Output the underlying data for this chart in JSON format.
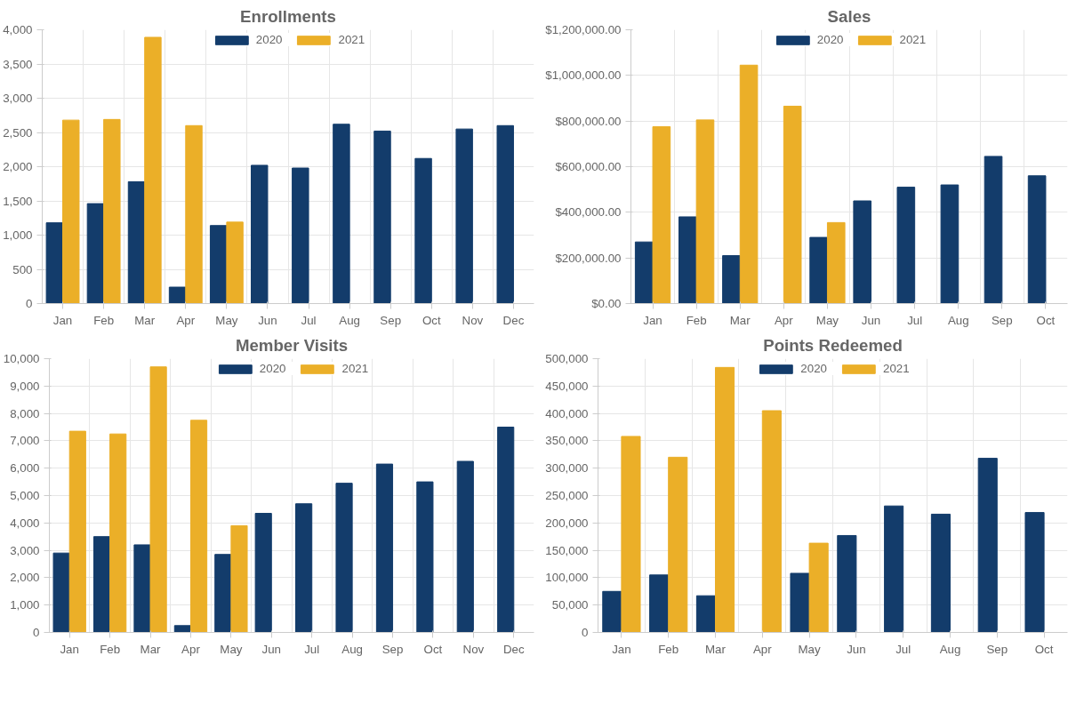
{
  "chart_data": [
    {
      "type": "bar",
      "title": "Enrollments",
      "categories": [
        "Jan",
        "Feb",
        "Mar",
        "Apr",
        "May",
        "Jun",
        "Jul",
        "Aug",
        "Sep",
        "Oct",
        "Nov",
        "Dec"
      ],
      "series": [
        {
          "name": "2020",
          "color": "#133c6b",
          "values": [
            1180,
            1460,
            1780,
            240,
            1140,
            2020,
            1980,
            2620,
            2520,
            2120,
            2550,
            2600
          ]
        },
        {
          "name": "2021",
          "color": "#ebaf28",
          "values": [
            2680,
            2690,
            3890,
            2600,
            1190,
            null,
            null,
            null,
            null,
            null,
            null,
            null
          ]
        }
      ],
      "ylim": [
        0,
        4000
      ],
      "yticks": [
        0,
        {
          "value": 500,
          "label": "500"
        },
        {
          "value": 1000,
          "label": "1,000"
        },
        {
          "value": 1500,
          "label": "1,500"
        },
        {
          "value": 2000,
          "label": "2,000"
        },
        {
          "value": 2500,
          "label": "2,500"
        },
        {
          "value": 3000,
          "label": "3,000"
        },
        {
          "value": 3500,
          "label": "3,500"
        },
        {
          "value": 4000,
          "label": "4,000"
        }
      ],
      "grid": true,
      "legend": "top"
    },
    {
      "type": "bar",
      "title": "Sales",
      "categories": [
        "Jan",
        "Feb",
        "Mar",
        "Apr",
        "May",
        "Jun",
        "Jul",
        "Aug",
        "Sep",
        "Oct"
      ],
      "series": [
        {
          "name": "2020",
          "color": "#133c6b",
          "values": [
            270000,
            380000,
            210000,
            null,
            290000,
            450000,
            510000,
            520000,
            645000,
            560000
          ]
        },
        {
          "name": "2021",
          "color": "#ebaf28",
          "values": [
            775000,
            805000,
            1045000,
            865000,
            355000,
            null,
            null,
            null,
            null,
            null
          ]
        }
      ],
      "ylim": [
        0,
        1200000
      ],
      "yticks": [
        {
          "value": 0,
          "label": "$0.00"
        },
        {
          "value": 200000,
          "label": "$200,000.00"
        },
        {
          "value": 400000,
          "label": "$400,000.00"
        },
        {
          "value": 600000,
          "label": "$600,000.00"
        },
        {
          "value": 800000,
          "label": "$800,000.00"
        },
        {
          "value": 1000000,
          "label": "$1,000,000.00"
        },
        {
          "value": 1200000,
          "label": "$1,200,000.00"
        }
      ],
      "grid": true,
      "legend": "top"
    },
    {
      "type": "bar",
      "title": "Member Visits",
      "categories": [
        "Jan",
        "Feb",
        "Mar",
        "Apr",
        "May",
        "Jun",
        "Jul",
        "Aug",
        "Sep",
        "Oct",
        "Nov",
        "Dec"
      ],
      "series": [
        {
          "name": "2020",
          "color": "#133c6b",
          "values": [
            2900,
            3500,
            3200,
            250,
            2850,
            4350,
            4700,
            5450,
            6150,
            5500,
            6250,
            7500
          ]
        },
        {
          "name": "2021",
          "color": "#ebaf28",
          "values": [
            7350,
            7250,
            9700,
            7750,
            3900,
            null,
            null,
            null,
            null,
            null,
            null,
            null
          ]
        }
      ],
      "ylim": [
        0,
        10000
      ],
      "yticks": [
        0,
        {
          "value": 1000,
          "label": "1,000"
        },
        {
          "value": 2000,
          "label": "2,000"
        },
        {
          "value": 3000,
          "label": "3,000"
        },
        {
          "value": 4000,
          "label": "4,000"
        },
        {
          "value": 5000,
          "label": "5,000"
        },
        {
          "value": 6000,
          "label": "6,000"
        },
        {
          "value": 7000,
          "label": "7,000"
        },
        {
          "value": 8000,
          "label": "8,000"
        },
        {
          "value": 9000,
          "label": "9,000"
        },
        {
          "value": 10000,
          "label": "10,000"
        }
      ],
      "grid": true,
      "legend": "top"
    },
    {
      "type": "bar",
      "title": "Points Redeemed",
      "categories": [
        "Jan",
        "Feb",
        "Mar",
        "Apr",
        "May",
        "Jun",
        "Jul",
        "Aug",
        "Sep",
        "Oct"
      ],
      "series": [
        {
          "name": "2020",
          "color": "#133c6b",
          "values": [
            75000,
            105000,
            67000,
            null,
            108000,
            177000,
            231000,
            216000,
            318000,
            219000
          ]
        },
        {
          "name": "2021",
          "color": "#ebaf28",
          "values": [
            358000,
            320000,
            484000,
            405000,
            163000,
            null,
            null,
            null,
            null,
            null
          ]
        }
      ],
      "ylim": [
        0,
        500000
      ],
      "yticks": [
        0,
        {
          "value": 50000,
          "label": "50,000"
        },
        {
          "value": 100000,
          "label": "100,000"
        },
        {
          "value": 150000,
          "label": "150,000"
        },
        {
          "value": 200000,
          "label": "200,000"
        },
        {
          "value": 250000,
          "label": "250,000"
        },
        {
          "value": 300000,
          "label": "300,000"
        },
        {
          "value": 350000,
          "label": "350,000"
        },
        {
          "value": 400000,
          "label": "400,000"
        },
        {
          "value": 450000,
          "label": "450,000"
        },
        {
          "value": 500000,
          "label": "500,000"
        }
      ],
      "grid": true,
      "legend": "top"
    }
  ]
}
